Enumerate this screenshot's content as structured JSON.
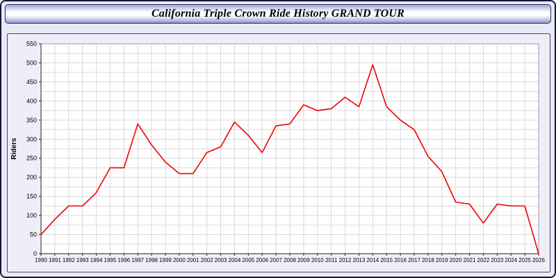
{
  "header": {
    "title": "California Triple Crown Ride History GRAND TOUR"
  },
  "chart_data": {
    "type": "line",
    "title": "California Triple Crown Ride History GRAND TOUR",
    "xlabel": "",
    "ylabel": "Riders",
    "ylim": [
      0,
      550
    ],
    "y_major_tick": 50,
    "y_minor_tick": 25,
    "grid": true,
    "legend": "none",
    "line_color": "#ee0000",
    "grid_color": "#d9d9d9",
    "plot_bg": "#ffffff",
    "x": [
      1990,
      1991,
      1992,
      1993,
      1994,
      1995,
      1996,
      1997,
      1998,
      1999,
      2000,
      2001,
      2002,
      2003,
      2004,
      2005,
      2006,
      2007,
      2008,
      2009,
      2010,
      2011,
      2012,
      2013,
      2014,
      2015,
      2016,
      2017,
      2018,
      2019,
      2020,
      2021,
      2022,
      2023,
      2024,
      2025,
      2026
    ],
    "values": [
      50,
      90,
      125,
      125,
      160,
      225,
      225,
      340,
      285,
      240,
      210,
      210,
      265,
      280,
      345,
      310,
      265,
      335,
      340,
      390,
      375,
      380,
      410,
      385,
      495,
      385,
      350,
      325,
      255,
      215,
      135,
      130,
      80,
      130,
      125,
      125,
      0
    ]
  }
}
